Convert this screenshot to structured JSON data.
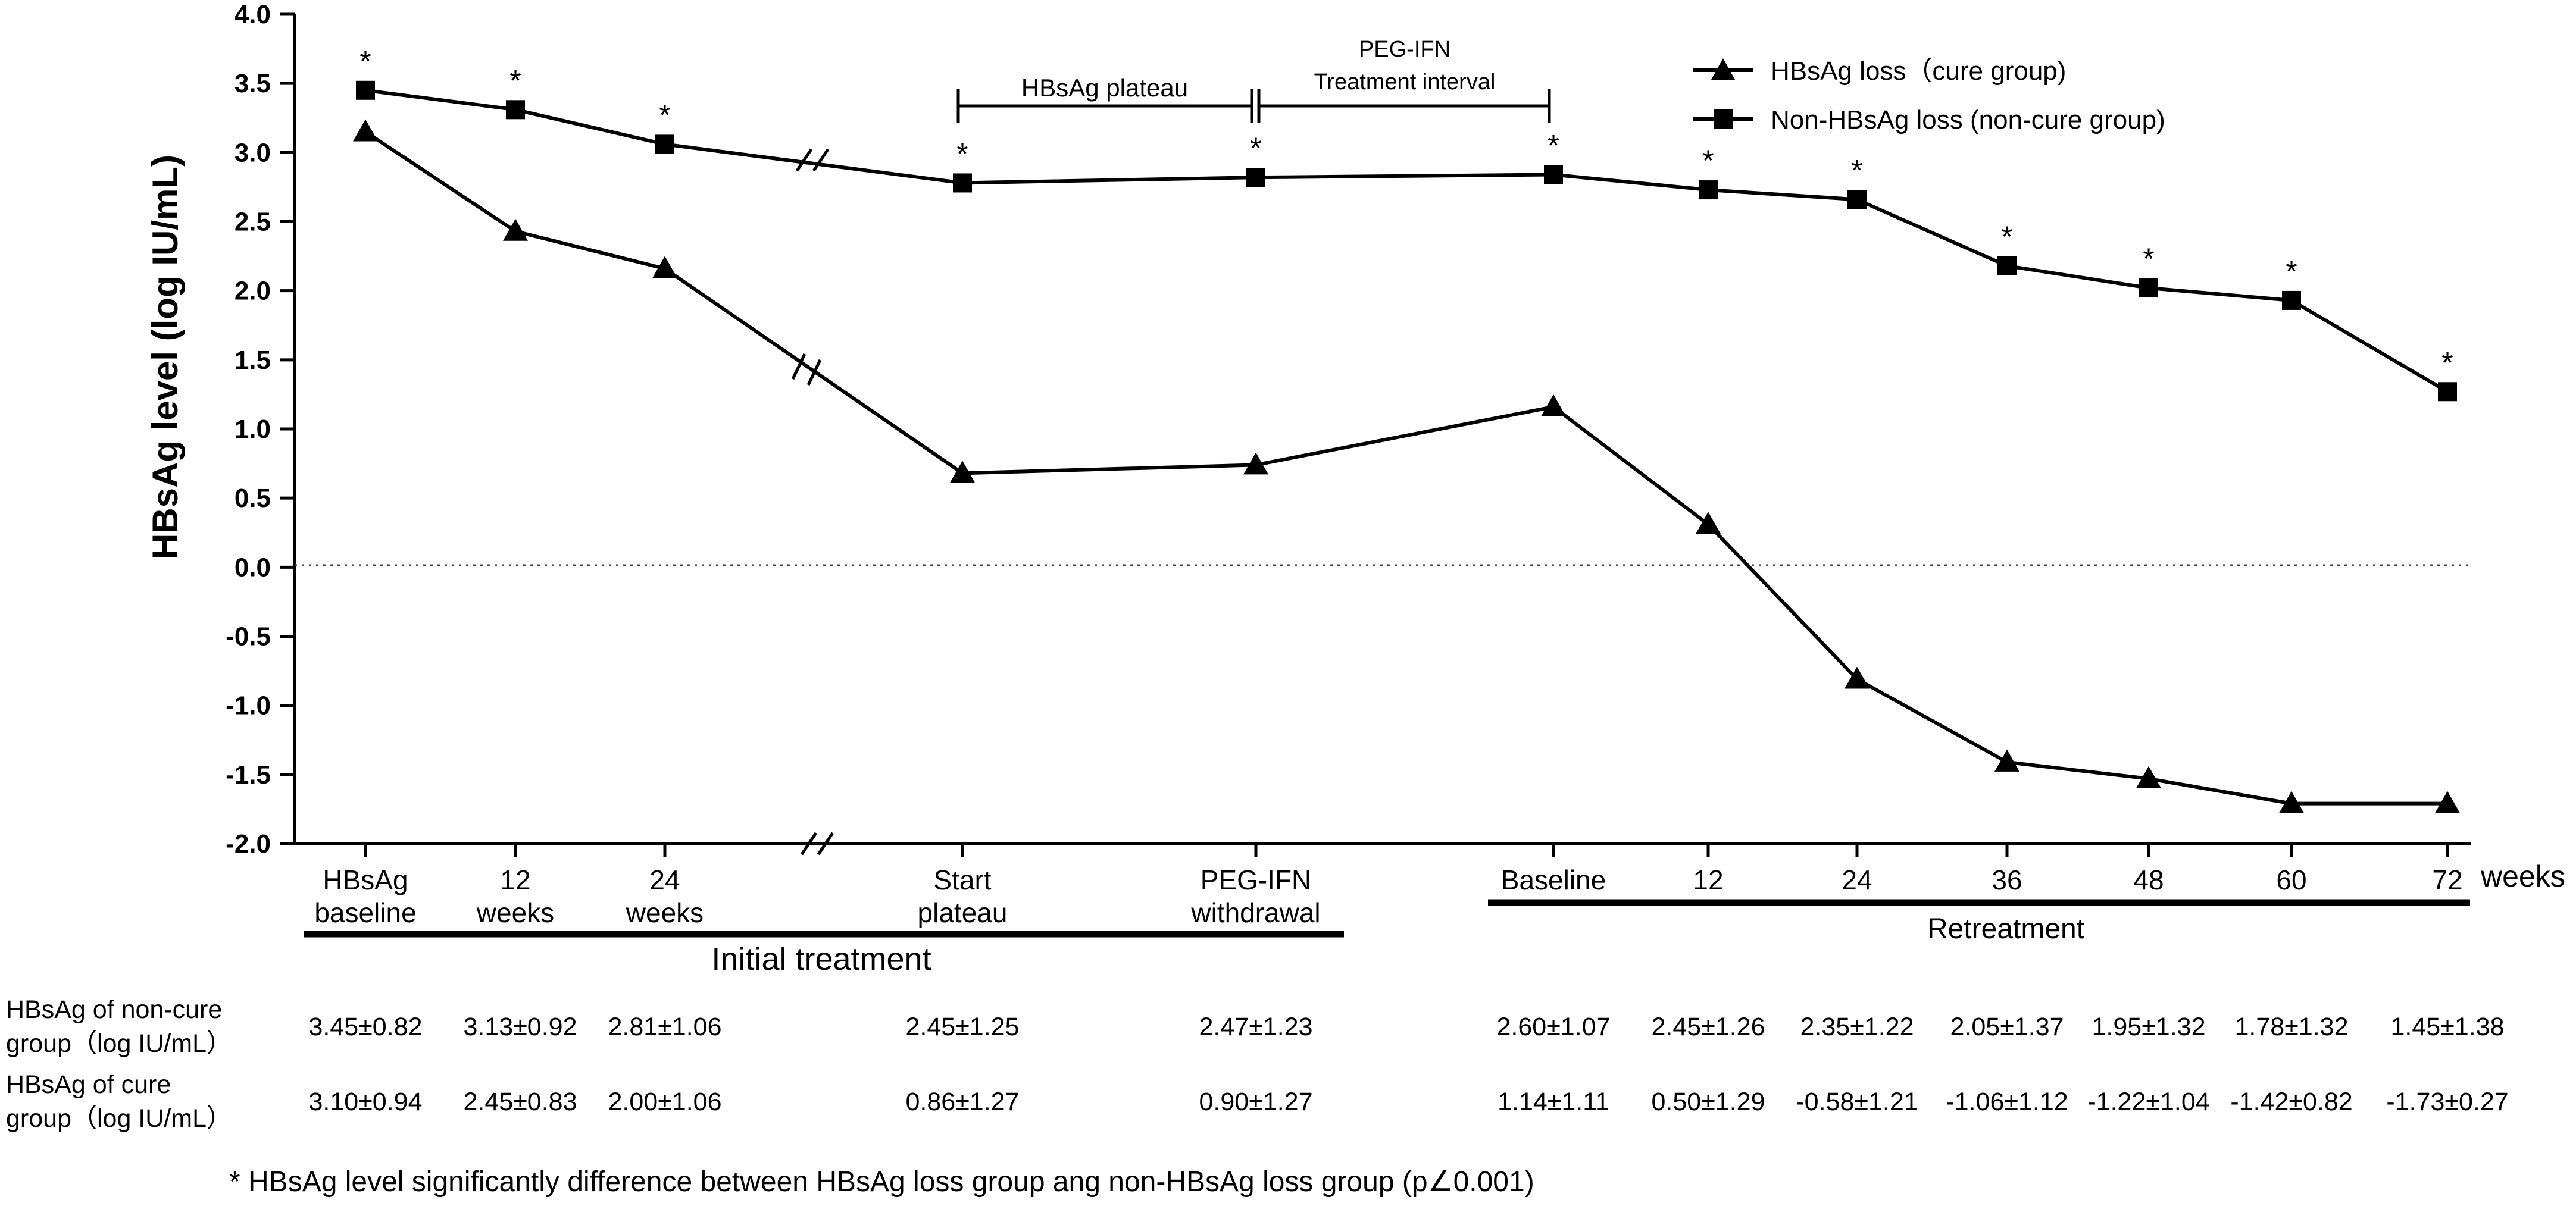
{
  "chart_data": {
    "type": "line",
    "ylabel": "HBsAg level (log IU/mL)",
    "ylim": [
      -2.0,
      4.0
    ],
    "ytick_labels": [
      "4.0",
      "3.5",
      "3.0",
      "2.5",
      "2.0",
      "1.5",
      "1.0",
      "0.5",
      "0.0",
      "-0.5",
      "-1.0",
      "-1.5",
      "-2.0"
    ],
    "x_unit_label": "weeks",
    "categories": [
      [
        "HBsAg",
        "baseline"
      ],
      [
        "12",
        "weeks"
      ],
      [
        "24",
        "weeks"
      ],
      [
        "Start",
        "plateau"
      ],
      [
        "PEG-IFN",
        "withdrawal"
      ],
      [
        "Baseline"
      ],
      [
        "12"
      ],
      [
        "24"
      ],
      [
        "36"
      ],
      [
        "48"
      ],
      [
        "60"
      ],
      [
        "72"
      ]
    ],
    "series": [
      {
        "name": "HBsAg loss（cure group)",
        "marker": "triangle",
        "values": [
          3.15,
          2.43,
          2.16,
          0.68,
          0.74,
          1.16,
          0.31,
          -0.81,
          -1.41,
          -1.53,
          -1.71,
          -1.71
        ]
      },
      {
        "name": "Non-HBsAg loss (non-cure group)",
        "marker": "square",
        "values": [
          3.45,
          3.31,
          3.06,
          2.78,
          2.82,
          2.84,
          2.73,
          2.66,
          2.18,
          2.02,
          1.93,
          1.27
        ]
      }
    ],
    "break_symbol": "//",
    "significance_marker": "*",
    "significant_points": [
      0,
      1,
      2,
      3,
      4,
      5,
      6,
      7,
      8,
      9,
      10,
      11
    ],
    "annotations": {
      "plateau_label": "HBsAg plateau",
      "peg_label_line1": "PEG-IFN",
      "peg_label_line2": "Treatment interval"
    },
    "phase_groups": [
      {
        "label": "Initial treatment"
      },
      {
        "label": "Retreatment"
      }
    ],
    "table": {
      "row_labels": [
        [
          "HBsAg of non-cure",
          "group（log IU/mL）"
        ],
        [
          "HBsAg of cure",
          "group（log IU/mL）"
        ]
      ],
      "rows": [
        [
          "3.45±0.82",
          "3.13±0.92",
          "2.81±1.06",
          "2.45±1.25",
          "2.47±1.23",
          "2.60±1.07",
          "2.45±1.26",
          "2.35±1.22",
          "2.05±1.37",
          "1.95±1.32",
          "1.78±1.32",
          "1.45±1.38"
        ],
        [
          "3.10±0.94",
          "2.45±0.83",
          "2.00±1.06",
          "0.86±1.27",
          "0.90±1.27",
          "1.14±1.11",
          "0.50±1.29",
          "-0.58±1.21",
          "-1.06±1.12",
          "-1.22±1.04",
          "-1.42±0.82",
          "-1.73±0.27"
        ]
      ]
    },
    "footnote": "* HBsAg level significantly difference between HBsAg loss group ang non-HBsAg loss group (p∠0.001)"
  }
}
